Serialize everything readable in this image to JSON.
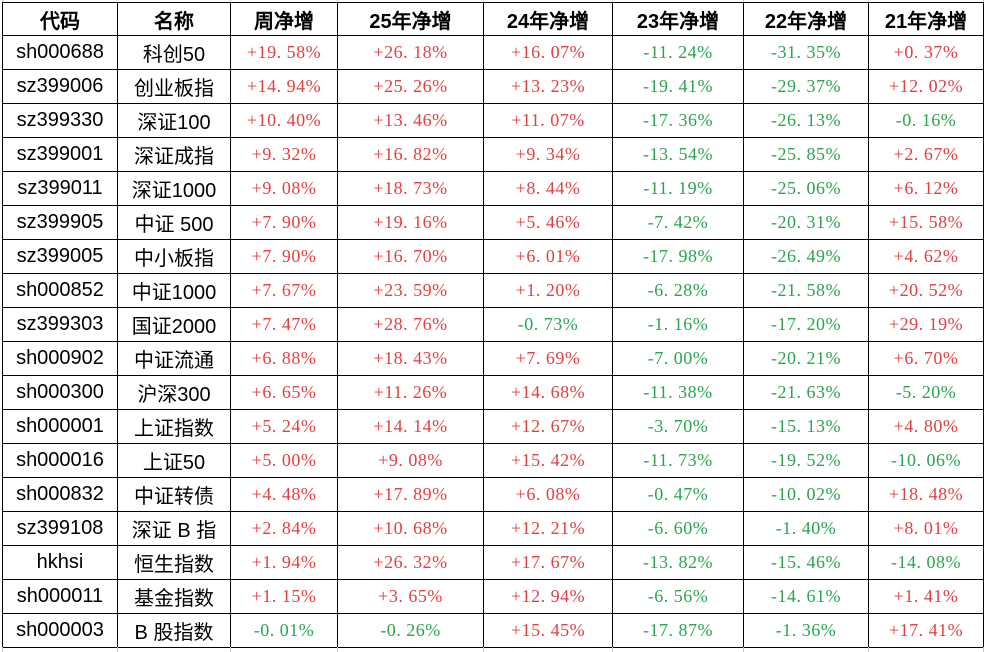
{
  "colors": {
    "positive_value": "#e04141",
    "negative_value": "#2aa44f",
    "header_text": "#000000",
    "grid_border": "#000000"
  },
  "table": {
    "columns": [
      {
        "key": "code",
        "label": "代码"
      },
      {
        "key": "name",
        "label": "名称"
      },
      {
        "key": "week",
        "label": "周净增"
      },
      {
        "key": "y25",
        "label": "25年净增"
      },
      {
        "key": "y24",
        "label": "24年净增"
      },
      {
        "key": "y23",
        "label": "23年净增"
      },
      {
        "key": "y22",
        "label": "22年净增"
      },
      {
        "key": "y21",
        "label": "21年净增"
      }
    ],
    "rows": [
      {
        "code": "sh000688",
        "name": "科创50",
        "values": [
          "+19.58%",
          "+26.18%",
          "+16.07%",
          "-11.24%",
          "-31.35%",
          "+0.37%"
        ]
      },
      {
        "code": "sz399006",
        "name": "创业板指",
        "values": [
          "+14.94%",
          "+25.26%",
          "+13.23%",
          "-19.41%",
          "-29.37%",
          "+12.02%"
        ]
      },
      {
        "code": "sz399330",
        "name": "深证100",
        "values": [
          "+10.40%",
          "+13.46%",
          "+11.07%",
          "-17.36%",
          "-26.13%",
          "-0.16%"
        ]
      },
      {
        "code": "sz399001",
        "name": "深证成指",
        "values": [
          "+9.32%",
          "+16.82%",
          "+9.34%",
          "-13.54%",
          "-25.85%",
          "+2.67%"
        ]
      },
      {
        "code": "sz399011",
        "name": "深证1000",
        "values": [
          "+9.08%",
          "+18.73%",
          "+8.44%",
          "-11.19%",
          "-25.06%",
          "+6.12%"
        ]
      },
      {
        "code": "sz399905",
        "name": "中证 500",
        "values": [
          "+7.90%",
          "+19.16%",
          "+5.46%",
          "-7.42%",
          "-20.31%",
          "+15.58%"
        ]
      },
      {
        "code": "sz399005",
        "name": "中小板指",
        "values": [
          "+7.90%",
          "+16.70%",
          "+6.01%",
          "-17.98%",
          "-26.49%",
          "+4.62%"
        ]
      },
      {
        "code": "sh000852",
        "name": "中证1000",
        "values": [
          "+7.67%",
          "+23.59%",
          "+1.20%",
          "-6.28%",
          "-21.58%",
          "+20.52%"
        ]
      },
      {
        "code": "sz399303",
        "name": "国证2000",
        "values": [
          "+7.47%",
          "+28.76%",
          "-0.73%",
          "-1.16%",
          "-17.20%",
          "+29.19%"
        ]
      },
      {
        "code": "sh000902",
        "name": "中证流通",
        "values": [
          "+6.88%",
          "+18.43%",
          "+7.69%",
          "-7.00%",
          "-20.21%",
          "+6.70%"
        ]
      },
      {
        "code": "sh000300",
        "name": "沪深300",
        "values": [
          "+6.65%",
          "+11.26%",
          "+14.68%",
          "-11.38%",
          "-21.63%",
          "-5.20%"
        ]
      },
      {
        "code": "sh000001",
        "name": "上证指数",
        "values": [
          "+5.24%",
          "+14.14%",
          "+12.67%",
          "-3.70%",
          "-15.13%",
          "+4.80%"
        ]
      },
      {
        "code": "sh000016",
        "name": "上证50",
        "values": [
          "+5.00%",
          "+9.08%",
          "+15.42%",
          "-11.73%",
          "-19.52%",
          "-10.06%"
        ]
      },
      {
        "code": "sh000832",
        "name": "中证转债",
        "values": [
          "+4.48%",
          "+17.89%",
          "+6.08%",
          "-0.47%",
          "-10.02%",
          "+18.48%"
        ]
      },
      {
        "code": "sz399108",
        "name": "深证 B 指",
        "values": [
          "+2.84%",
          "+10.68%",
          "+12.21%",
          "-6.60%",
          "-1.40%",
          "+8.01%"
        ]
      },
      {
        "code": "hkhsi",
        "name": "恒生指数",
        "values": [
          "+1.94%",
          "+26.32%",
          "+17.67%",
          "-13.82%",
          "-15.46%",
          "-14.08%"
        ]
      },
      {
        "code": "sh000011",
        "name": "基金指数",
        "values": [
          "+1.15%",
          "+3.65%",
          "+12.94%",
          "-6.56%",
          "-14.61%",
          "+1.41%"
        ]
      },
      {
        "code": "sh000003",
        "name": "B 股指数",
        "values": [
          "-0.01%",
          "-0.26%",
          "+15.45%",
          "-17.87%",
          "-1.36%",
          "+17.41%"
        ]
      }
    ]
  }
}
